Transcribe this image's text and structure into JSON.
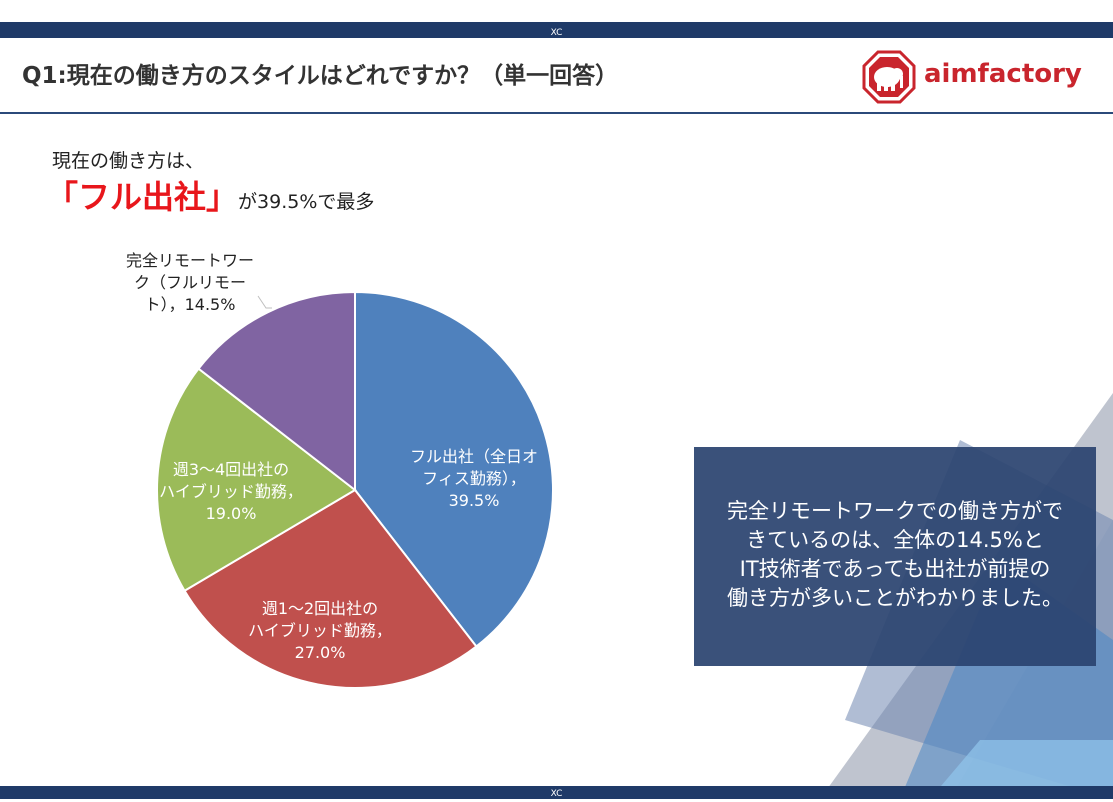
{
  "header": {
    "top_tag": "XC",
    "question": "Q1:現在の働き方のスタイルはどれですか？（単一回答）",
    "logo_text": "aimfactory"
  },
  "headline": {
    "line1": "現在の働き方は、",
    "emphasis": "「フル出社」",
    "suffix": "が39.5%で最多"
  },
  "summary": {
    "lines": [
      "完全リモートワークでの働き方がで",
      "きているのは、全体の14.5%と",
      "IT技術者であっても出社が前提の",
      "働き方が多いことがわかりました。"
    ]
  },
  "footer": {
    "tag": "XC"
  },
  "colors": {
    "navy": "#1f3a68",
    "accent_red": "#e8161b",
    "summary_box": "#2b4470"
  },
  "chart_data": {
    "type": "pie",
    "unit": "%",
    "slices": [
      {
        "label_lines": [
          "フル出社（全日オ",
          "フィス勤務），",
          "39.5%"
        ],
        "value": 39.5,
        "color": "#4f81bd"
      },
      {
        "label_lines": [
          "週1～2回出社の",
          "ハイブリッド勤務，",
          "27.0%"
        ],
        "value": 27.0,
        "color": "#c0504d"
      },
      {
        "label_lines": [
          "週3～4回出社の",
          "ハイブリッド勤務，",
          "19.0%"
        ],
        "value": 19.0,
        "color": "#9bbb59"
      },
      {
        "label_lines": [
          "完全リモートワー",
          "ク（フルリモー",
          "ト），14.5%"
        ],
        "value": 14.5,
        "color": "#8064a2"
      }
    ]
  }
}
